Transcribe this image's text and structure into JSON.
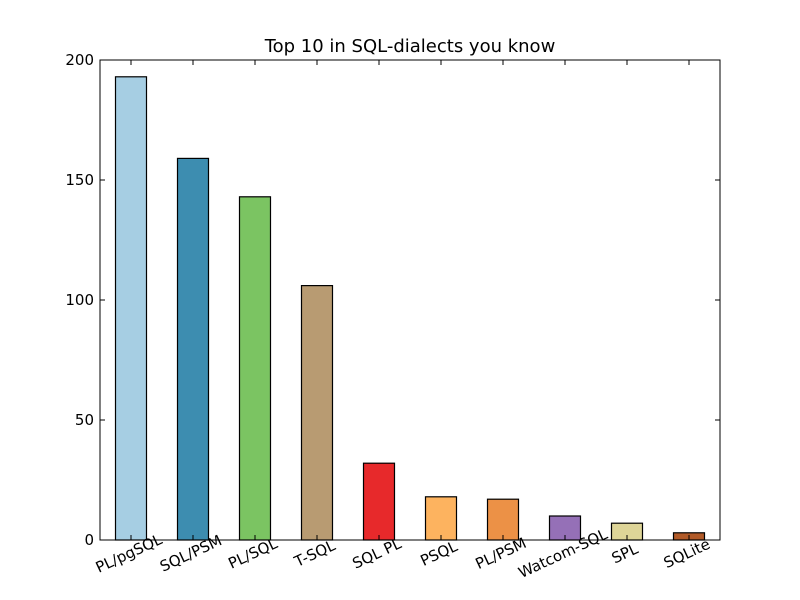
{
  "chart_data": {
    "type": "bar",
    "title": "Top 10 in SQL-dialects you know",
    "xlabel": "",
    "ylabel": "",
    "categories": [
      "PL/pgSQL",
      "SQL/PSM",
      "PL/SQL",
      "T-SQL",
      "SQL PL",
      "PSQL",
      "PL/PSM",
      "Watcom-SQL",
      "SPL",
      "SQLite"
    ],
    "values": [
      193,
      159,
      143,
      106,
      32,
      18,
      17,
      10,
      7,
      3
    ],
    "colors": [
      "#a6cee3",
      "#3d8db0",
      "#7bc462",
      "#b89b72",
      "#e7292b",
      "#fdb35f",
      "#ec9146",
      "#9570b7",
      "#ded598",
      "#b15a28"
    ],
    "ylim": [
      0,
      200
    ],
    "yticks": [
      0,
      50,
      100,
      150,
      200
    ],
    "xtick_rotation": -25,
    "grid": false,
    "legend": "none"
  }
}
